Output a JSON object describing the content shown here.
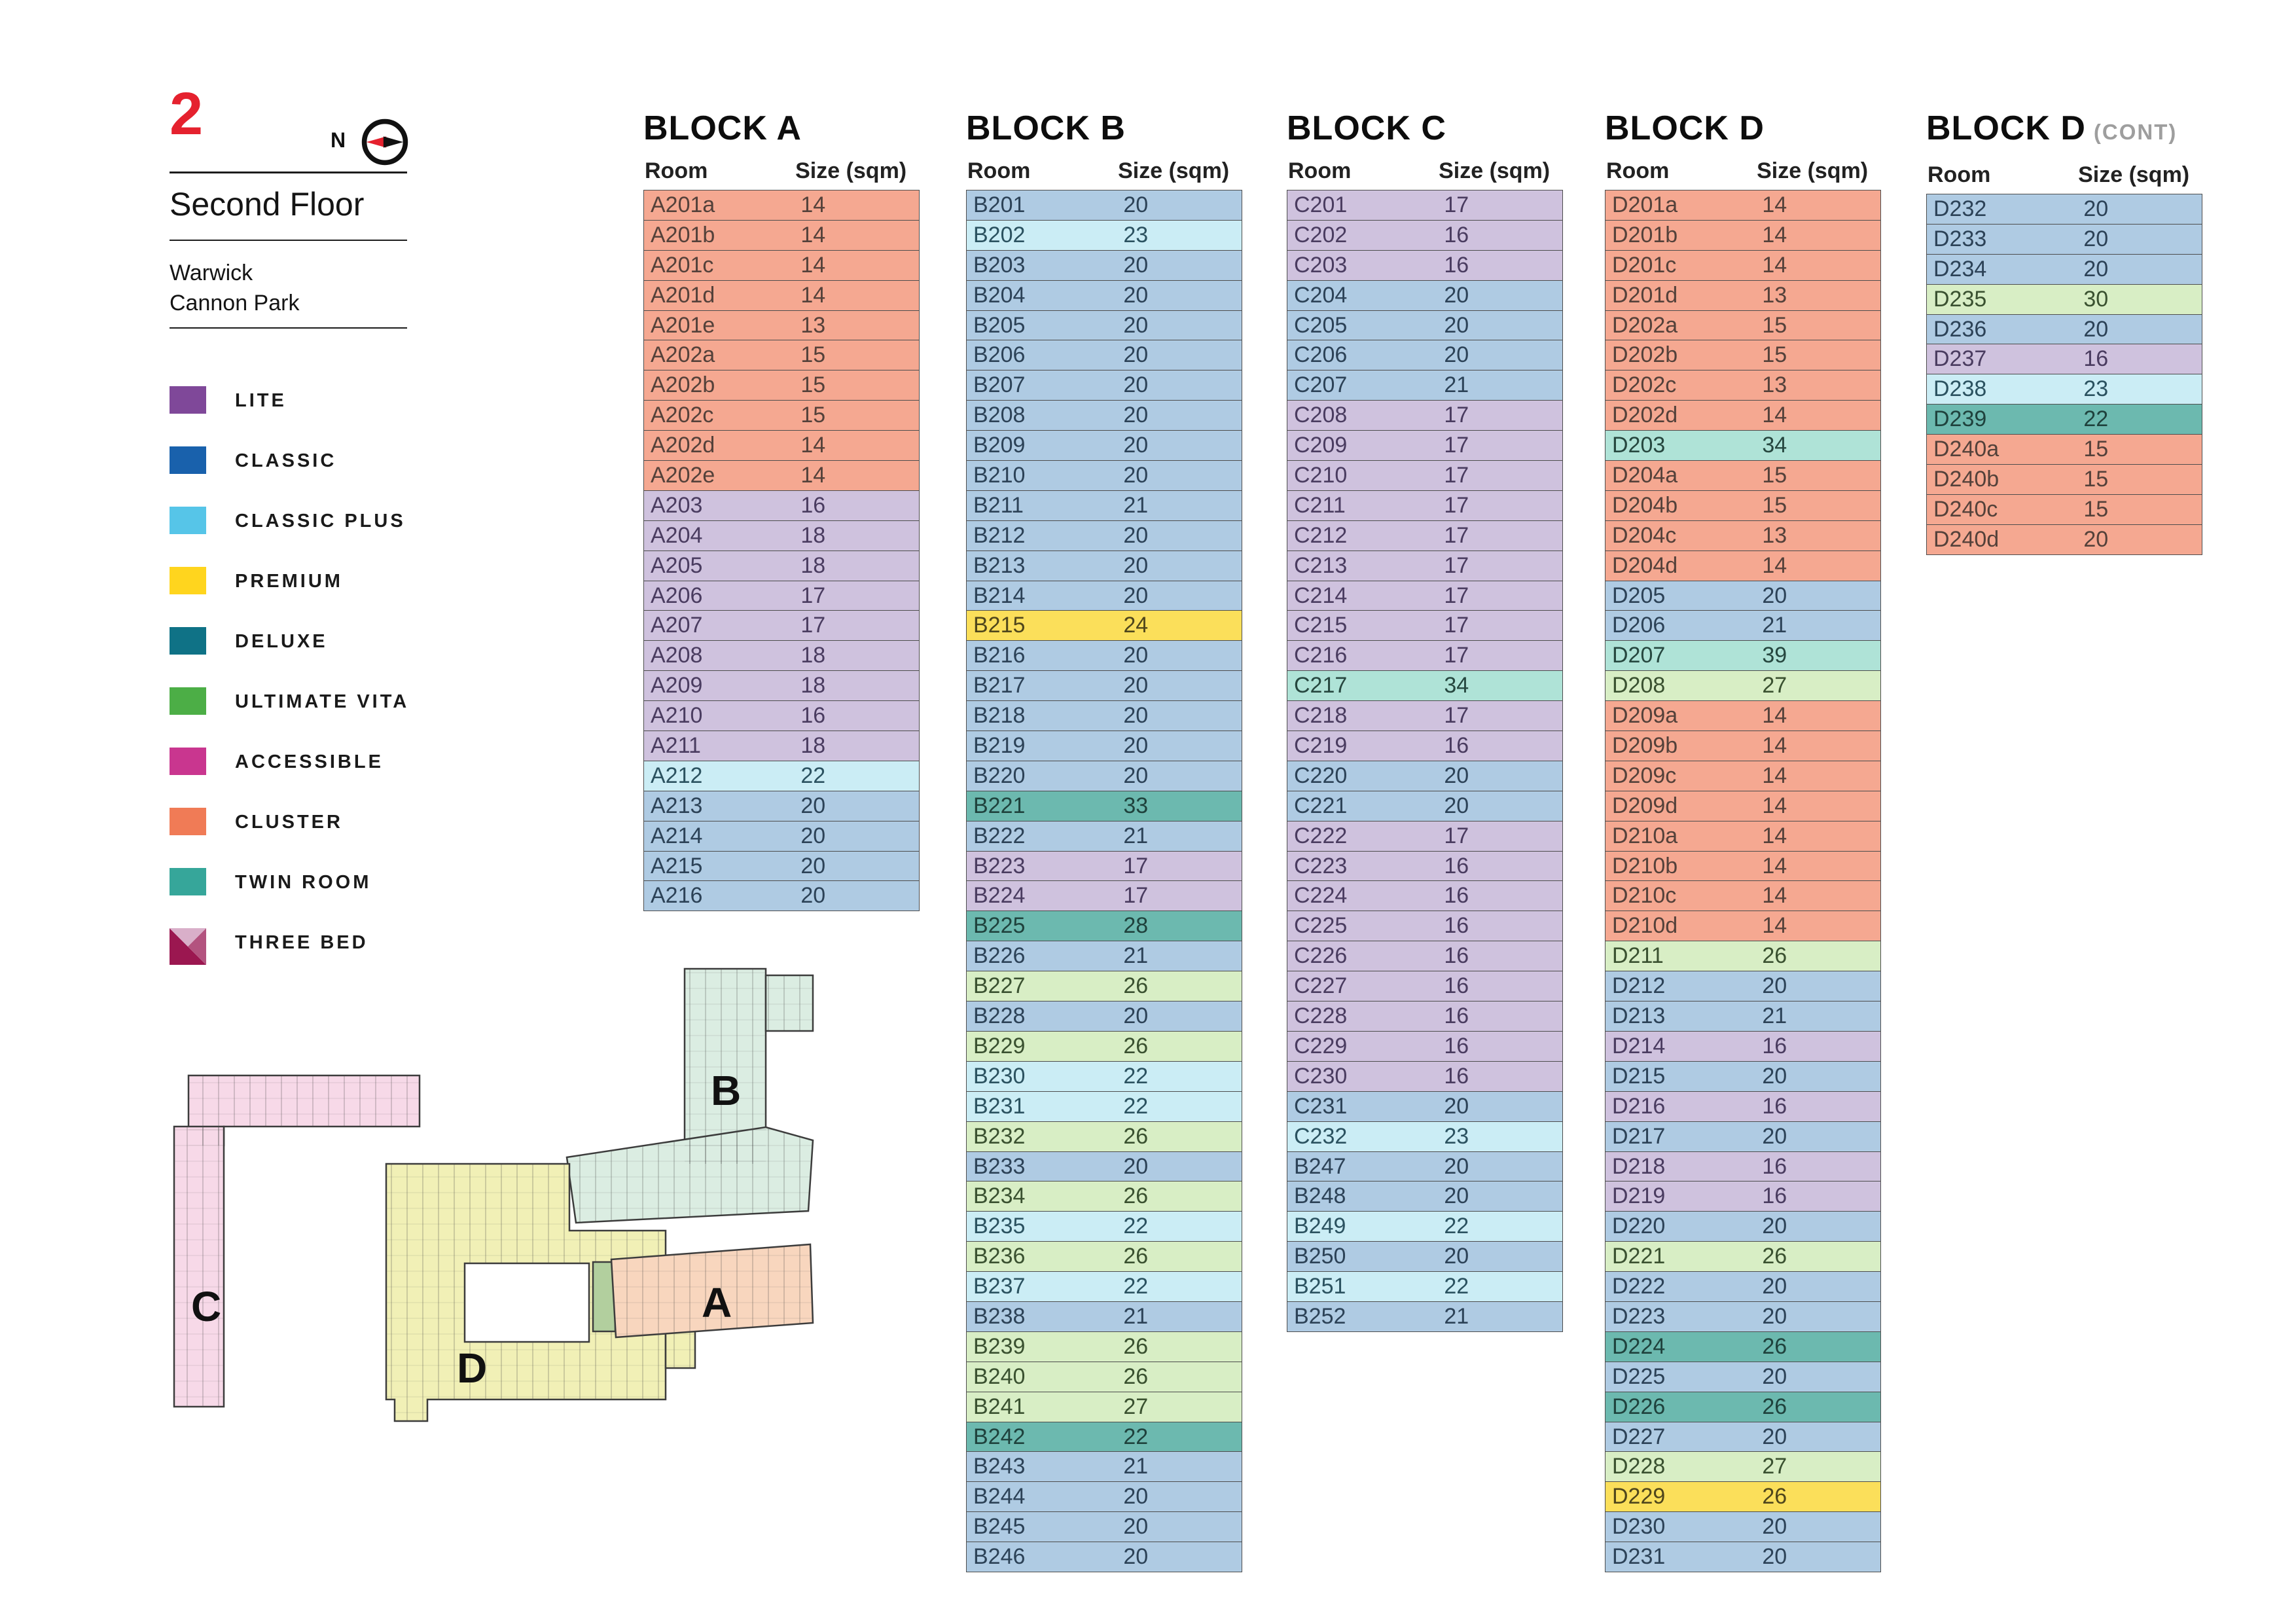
{
  "page": {
    "floor_number": "2",
    "floor_name": "Second Floor",
    "location_line1": "Warwick",
    "location_line2": "Cannon Park",
    "compass_label": "N"
  },
  "legend": {
    "items": [
      {
        "label": "LITE",
        "type": "lite",
        "color": "#7F4899"
      },
      {
        "label": "CLASSIC",
        "type": "classic",
        "color": "#1961AC"
      },
      {
        "label": "CLASSIC PLUS",
        "type": "classicplus",
        "color": "#56C5E8"
      },
      {
        "label": "PREMIUM",
        "type": "premium",
        "color": "#FFD51E"
      },
      {
        "label": "DELUXE",
        "type": "deluxe",
        "color": "#0F7286"
      },
      {
        "label": "ULTIMATE VITA",
        "type": "ultimate",
        "color": "#4CAE46"
      },
      {
        "label": "ACCESSIBLE",
        "type": "accessible",
        "color": "#C9368F"
      },
      {
        "label": "CLUSTER",
        "type": "cluster",
        "color": "#F07B56"
      },
      {
        "label": "TWIN ROOM",
        "type": "twin",
        "color": "#36A69A"
      },
      {
        "label": "THREE BED",
        "type": "threebed",
        "color": "#9B1750",
        "tri_colors": [
          "#D9AFC9",
          "#B3537F",
          "#9B1750"
        ]
      }
    ]
  },
  "row_tints": {
    "lite": {
      "bg": "#CFC2DE",
      "fg": "#4A3C60"
    },
    "classic": {
      "bg": "#AFCBE3",
      "fg": "#2C4257"
    },
    "classicplus": {
      "bg": "#CBEDF5",
      "fg": "#2B5260"
    },
    "premium": {
      "bg": "#FBDF5A",
      "fg": "#4F461C"
    },
    "ultimate": {
      "bg": "#D8EEC5",
      "fg": "#3A5130"
    },
    "cluster": {
      "bg": "#F5A891",
      "fg": "#54413A"
    },
    "twin": {
      "bg": "#6CB9AF",
      "fg": "#1F423D"
    },
    "twinlight": {
      "bg": "#AFE3D7",
      "fg": "#26473F"
    }
  },
  "tables": {
    "columns": {
      "room": "Room",
      "size": "Size (sqm)"
    },
    "blocks": [
      {
        "title": "BLOCK A",
        "suffix": "",
        "rows": [
          [
            "A201a",
            14,
            "cluster"
          ],
          [
            "A201b",
            14,
            "cluster"
          ],
          [
            "A201c",
            14,
            "cluster"
          ],
          [
            "A201d",
            14,
            "cluster"
          ],
          [
            "A201e",
            13,
            "cluster"
          ],
          [
            "A202a",
            15,
            "cluster"
          ],
          [
            "A202b",
            15,
            "cluster"
          ],
          [
            "A202c",
            15,
            "cluster"
          ],
          [
            "A202d",
            14,
            "cluster"
          ],
          [
            "A202e",
            14,
            "cluster"
          ],
          [
            "A203",
            16,
            "lite"
          ],
          [
            "A204",
            18,
            "lite"
          ],
          [
            "A205",
            18,
            "lite"
          ],
          [
            "A206",
            17,
            "lite"
          ],
          [
            "A207",
            17,
            "lite"
          ],
          [
            "A208",
            18,
            "lite"
          ],
          [
            "A209",
            18,
            "lite"
          ],
          [
            "A210",
            16,
            "lite"
          ],
          [
            "A211",
            18,
            "lite"
          ],
          [
            "A212",
            22,
            "classicplus"
          ],
          [
            "A213",
            20,
            "classic"
          ],
          [
            "A214",
            20,
            "classic"
          ],
          [
            "A215",
            20,
            "classic"
          ],
          [
            "A216",
            20,
            "classic"
          ]
        ]
      },
      {
        "title": "BLOCK B",
        "suffix": "",
        "rows": [
          [
            "B201",
            20,
            "classic"
          ],
          [
            "B202",
            23,
            "classicplus"
          ],
          [
            "B203",
            20,
            "classic"
          ],
          [
            "B204",
            20,
            "classic"
          ],
          [
            "B205",
            20,
            "classic"
          ],
          [
            "B206",
            20,
            "classic"
          ],
          [
            "B207",
            20,
            "classic"
          ],
          [
            "B208",
            20,
            "classic"
          ],
          [
            "B209",
            20,
            "classic"
          ],
          [
            "B210",
            20,
            "classic"
          ],
          [
            "B211",
            21,
            "classic"
          ],
          [
            "B212",
            20,
            "classic"
          ],
          [
            "B213",
            20,
            "classic"
          ],
          [
            "B214",
            20,
            "classic"
          ],
          [
            "B215",
            24,
            "premium"
          ],
          [
            "B216",
            20,
            "classic"
          ],
          [
            "B217",
            20,
            "classic"
          ],
          [
            "B218",
            20,
            "classic"
          ],
          [
            "B219",
            20,
            "classic"
          ],
          [
            "B220",
            20,
            "classic"
          ],
          [
            "B221",
            33,
            "twin"
          ],
          [
            "B222",
            21,
            "classic"
          ],
          [
            "B223",
            17,
            "lite"
          ],
          [
            "B224",
            17,
            "lite"
          ],
          [
            "B225",
            28,
            "twin"
          ],
          [
            "B226",
            21,
            "classic"
          ],
          [
            "B227",
            26,
            "ultimate"
          ],
          [
            "B228",
            20,
            "classic"
          ],
          [
            "B229",
            26,
            "ultimate"
          ],
          [
            "B230",
            22,
            "classicplus"
          ],
          [
            "B231",
            22,
            "classicplus"
          ],
          [
            "B232",
            26,
            "ultimate"
          ],
          [
            "B233",
            20,
            "classic"
          ],
          [
            "B234",
            26,
            "ultimate"
          ],
          [
            "B235",
            22,
            "classicplus"
          ],
          [
            "B236",
            26,
            "ultimate"
          ],
          [
            "B237",
            22,
            "classicplus"
          ],
          [
            "B238",
            21,
            "classic"
          ],
          [
            "B239",
            26,
            "ultimate"
          ],
          [
            "B240",
            26,
            "ultimate"
          ],
          [
            "B241",
            27,
            "ultimate"
          ],
          [
            "B242",
            22,
            "twin"
          ],
          [
            "B243",
            21,
            "classic"
          ],
          [
            "B244",
            20,
            "classic"
          ],
          [
            "B245",
            20,
            "classic"
          ],
          [
            "B246",
            20,
            "classic"
          ]
        ]
      },
      {
        "title": "BLOCK C",
        "suffix": "",
        "rows": [
          [
            "C201",
            17,
            "lite"
          ],
          [
            "C202",
            16,
            "lite"
          ],
          [
            "C203",
            16,
            "lite"
          ],
          [
            "C204",
            20,
            "classic"
          ],
          [
            "C205",
            20,
            "classic"
          ],
          [
            "C206",
            20,
            "classic"
          ],
          [
            "C207",
            21,
            "classic"
          ],
          [
            "C208",
            17,
            "lite"
          ],
          [
            "C209",
            17,
            "lite"
          ],
          [
            "C210",
            17,
            "lite"
          ],
          [
            "C211",
            17,
            "lite"
          ],
          [
            "C212",
            17,
            "lite"
          ],
          [
            "C213",
            17,
            "lite"
          ],
          [
            "C214",
            17,
            "lite"
          ],
          [
            "C215",
            17,
            "lite"
          ],
          [
            "C216",
            17,
            "lite"
          ],
          [
            "C217",
            34,
            "twinlight"
          ],
          [
            "C218",
            17,
            "lite"
          ],
          [
            "C219",
            16,
            "lite"
          ],
          [
            "C220",
            20,
            "classic"
          ],
          [
            "C221",
            20,
            "classic"
          ],
          [
            "C222",
            17,
            "lite"
          ],
          [
            "C223",
            16,
            "lite"
          ],
          [
            "C224",
            16,
            "lite"
          ],
          [
            "C225",
            16,
            "lite"
          ],
          [
            "C226",
            16,
            "lite"
          ],
          [
            "C227",
            16,
            "lite"
          ],
          [
            "C228",
            16,
            "lite"
          ],
          [
            "C229",
            16,
            "lite"
          ],
          [
            "C230",
            16,
            "lite"
          ],
          [
            "C231",
            20,
            "classic"
          ],
          [
            "C232",
            23,
            "classicplus"
          ],
          [
            "B247",
            20,
            "classic"
          ],
          [
            "B248",
            20,
            "classic"
          ],
          [
            "B249",
            22,
            "classicplus"
          ],
          [
            "B250",
            20,
            "classic"
          ],
          [
            "B251",
            22,
            "classicplus"
          ],
          [
            "B252",
            21,
            "classic"
          ]
        ]
      },
      {
        "title": "BLOCK D",
        "suffix": "",
        "rows": [
          [
            "D201a",
            14,
            "cluster"
          ],
          [
            "D201b",
            14,
            "cluster"
          ],
          [
            "D201c",
            14,
            "cluster"
          ],
          [
            "D201d",
            13,
            "cluster"
          ],
          [
            "D202a",
            15,
            "cluster"
          ],
          [
            "D202b",
            15,
            "cluster"
          ],
          [
            "D202c",
            13,
            "cluster"
          ],
          [
            "D202d",
            14,
            "cluster"
          ],
          [
            "D203",
            34,
            "twinlight"
          ],
          [
            "D204a",
            15,
            "cluster"
          ],
          [
            "D204b",
            15,
            "cluster"
          ],
          [
            "D204c",
            13,
            "cluster"
          ],
          [
            "D204d",
            14,
            "cluster"
          ],
          [
            "D205",
            20,
            "classic"
          ],
          [
            "D206",
            21,
            "classic"
          ],
          [
            "D207",
            39,
            "twinlight"
          ],
          [
            "D208",
            27,
            "ultimate"
          ],
          [
            "D209a",
            14,
            "cluster"
          ],
          [
            "D209b",
            14,
            "cluster"
          ],
          [
            "D209c",
            14,
            "cluster"
          ],
          [
            "D209d",
            14,
            "cluster"
          ],
          [
            "D210a",
            14,
            "cluster"
          ],
          [
            "D210b",
            14,
            "cluster"
          ],
          [
            "D210c",
            14,
            "cluster"
          ],
          [
            "D210d",
            14,
            "cluster"
          ],
          [
            "D211",
            26,
            "ultimate"
          ],
          [
            "D212",
            20,
            "classic"
          ],
          [
            "D213",
            21,
            "classic"
          ],
          [
            "D214",
            16,
            "lite"
          ],
          [
            "D215",
            20,
            "classic"
          ],
          [
            "D216",
            16,
            "lite"
          ],
          [
            "D217",
            20,
            "classic"
          ],
          [
            "D218",
            16,
            "lite"
          ],
          [
            "D219",
            16,
            "lite"
          ],
          [
            "D220",
            20,
            "classic"
          ],
          [
            "D221",
            26,
            "ultimate"
          ],
          [
            "D222",
            20,
            "classic"
          ],
          [
            "D223",
            20,
            "classic"
          ],
          [
            "D224",
            26,
            "twin"
          ],
          [
            "D225",
            20,
            "classic"
          ],
          [
            "D226",
            26,
            "twin"
          ],
          [
            "D227",
            20,
            "classic"
          ],
          [
            "D228",
            27,
            "ultimate"
          ],
          [
            "D229",
            26,
            "premium"
          ],
          [
            "D230",
            20,
            "classic"
          ],
          [
            "D231",
            20,
            "classic"
          ]
        ]
      },
      {
        "title": "BLOCK D",
        "suffix": "(CONT)",
        "rows": [
          [
            "D232",
            20,
            "classic"
          ],
          [
            "D233",
            20,
            "classic"
          ],
          [
            "D234",
            20,
            "classic"
          ],
          [
            "D235",
            30,
            "ultimate"
          ],
          [
            "D236",
            20,
            "classic"
          ],
          [
            "D237",
            16,
            "lite"
          ],
          [
            "D238",
            23,
            "classicplus"
          ],
          [
            "D239",
            22,
            "twin"
          ],
          [
            "D240a",
            15,
            "cluster"
          ],
          [
            "D240b",
            15,
            "cluster"
          ],
          [
            "D240c",
            15,
            "cluster"
          ],
          [
            "D240d",
            20,
            "cluster"
          ]
        ]
      }
    ]
  },
  "map": {
    "labels": [
      "C",
      "D",
      "B",
      "A"
    ],
    "block_colors": {
      "C": "#F7D9E8",
      "D": "#F1F0B6",
      "B": "#DBEDE2",
      "A": "#F8D6BE",
      "accent": "#B2CF9E"
    }
  }
}
